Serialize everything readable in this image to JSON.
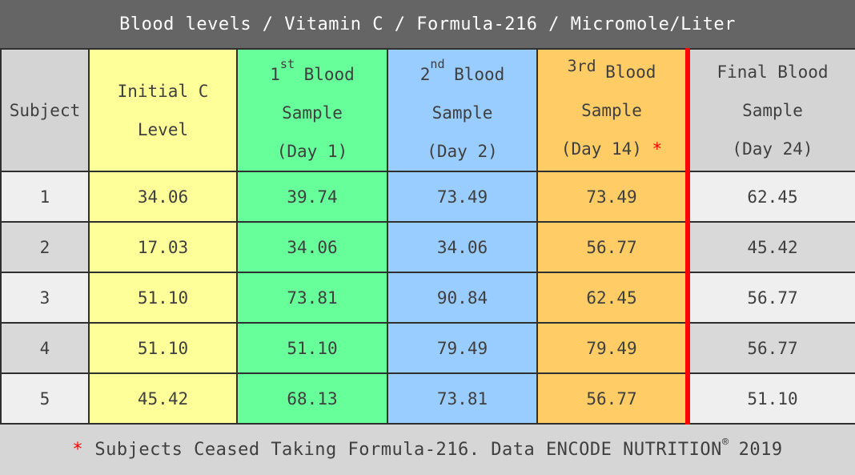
{
  "title_bar": {
    "title": "Blood levels / Vitamin C / Formula-216 / Micromole/Liter"
  },
  "chart_data": {
    "type": "table",
    "title": "Blood levels / Vitamin C / Formula-216 / Micromole/Liter",
    "units": "Micromole/Liter",
    "columns": [
      {
        "key": "subject",
        "label": "Subject"
      },
      {
        "key": "initial_c_level",
        "label": "Initial C Level",
        "line1": "Initial C",
        "line2": "Level",
        "color": "#ffff99"
      },
      {
        "key": "blood_sample_1",
        "label": "1st Blood Sample (Day 1)",
        "ordinal": "1",
        "ordinal_suffix": "st",
        "line1_rest": "Blood",
        "line2": "Sample",
        "line3": "(Day 1)",
        "color": "#66ff99"
      },
      {
        "key": "blood_sample_2",
        "label": "2nd Blood Sample (Day 2)",
        "ordinal": "2",
        "ordinal_suffix": "nd",
        "line1_rest": "Blood",
        "line2": "Sample",
        "line3": "(Day 2)",
        "color": "#99ccff"
      },
      {
        "key": "blood_sample_3",
        "label": "3rd Blood Sample (Day 14) *",
        "ordinal_raised": "3rd",
        "line1_rest": "Blood",
        "line2": "Sample",
        "line3": "(Day 14)",
        "flag": "*",
        "color": "#ffcc66"
      },
      {
        "key": "final_blood_sample",
        "label": "Final Blood Sample (Day 24)",
        "line1": "Final Blood",
        "line2": "Sample",
        "line3": "(Day 24)",
        "color": "#d4d4d4"
      }
    ],
    "rows": [
      [
        "1",
        "34.06",
        "39.74",
        "73.49",
        "73.49",
        "62.45"
      ],
      [
        "2",
        "17.03",
        "34.06",
        "34.06",
        "56.77",
        "45.42"
      ],
      [
        "3",
        "51.10",
        "73.81",
        "90.84",
        "62.45",
        "56.77"
      ],
      [
        "4",
        "51.10",
        "51.10",
        "79.49",
        "79.49",
        "56.77"
      ],
      [
        "5",
        "45.42",
        "68.13",
        "73.81",
        "56.77",
        "51.10"
      ]
    ]
  },
  "footnote": {
    "asterisk": "*",
    "text": "Subjects Ceased Taking Formula-216. Data ENCODE NUTRITION",
    "registered_mark": "®",
    "year": "2019"
  },
  "colors": {
    "title_bar_bg": "#656565",
    "header_cell_bg": "#d4d4d4",
    "row_bg_light": "#efefef",
    "row_bg_dark": "#d9d9d9",
    "col_yellow": "#ffff99",
    "col_green": "#66ff99",
    "col_blue": "#99ccff",
    "col_orange": "#ffcc66",
    "footer_bg": "#d6d6d6",
    "border": "#2f2f2f",
    "text": "#3f3f3f",
    "accent_red": "#ff0000"
  }
}
